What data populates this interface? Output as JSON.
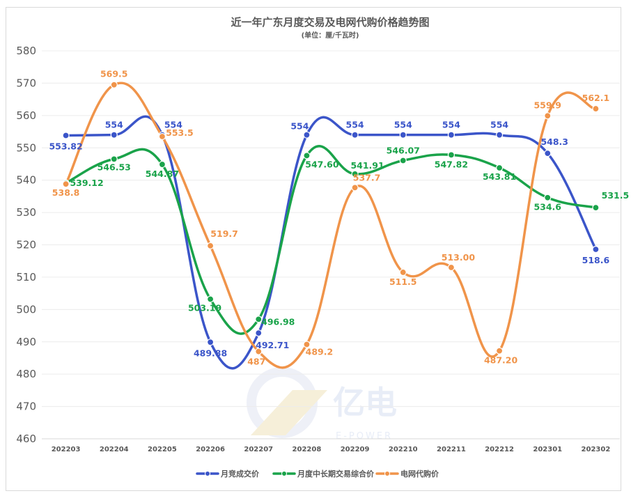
{
  "chart_data": {
    "type": "line",
    "title": "近一年广东月度交易及电网代购价格趋势图",
    "subtitle": "(单位：厘/千瓦时)",
    "categories": [
      "202203",
      "202204",
      "202205",
      "202206",
      "202207",
      "202208",
      "202209",
      "202210",
      "202211",
      "202212",
      "202301",
      "202302"
    ],
    "ylim": [
      460,
      580
    ],
    "yticks": [
      460,
      470,
      480,
      490,
      500,
      510,
      520,
      530,
      540,
      550,
      560,
      570,
      580
    ],
    "grid": true,
    "smooth": true,
    "legend_position": "bottom",
    "series": [
      {
        "name": "月竞成交价",
        "color": "#3b55c9",
        "values": [
          553.82,
          554,
          554,
          489.88,
          492.71,
          554,
          554,
          554,
          554,
          554,
          548.3,
          518.6
        ],
        "labels": [
          "553.82",
          "554",
          "554",
          "489.88",
          "492.71",
          "554",
          "554",
          "554",
          "554",
          "554",
          "548.3",
          "518.6"
        ]
      },
      {
        "name": "月度中长期交易综合价",
        "color": "#1aa34a",
        "values": [
          539.12,
          546.53,
          544.87,
          503.19,
          496.98,
          547.6,
          541.91,
          546.07,
          547.82,
          543.81,
          534.6,
          531.5
        ],
        "labels": [
          "539.12",
          "546.53",
          "544.87",
          "503.19",
          "496.98",
          "547.60",
          "541.91",
          "546.07",
          "547.82",
          "543.81",
          "534.6",
          "531.5"
        ]
      },
      {
        "name": "电网代购价",
        "color": "#f0944a",
        "values": [
          538.8,
          569.5,
          553.5,
          519.7,
          487,
          489.2,
          537.7,
          511.5,
          513.0,
          487.2,
          559.9,
          562.1
        ],
        "labels": [
          "538.8",
          "569.5",
          "553.5",
          "519.7",
          "487",
          "489.2",
          "537.7",
          "511.5",
          "513.00",
          "487.20",
          "559.9",
          "562.1"
        ]
      }
    ]
  },
  "watermark": {
    "brand": "亿电",
    "sub": "E-POWER"
  }
}
